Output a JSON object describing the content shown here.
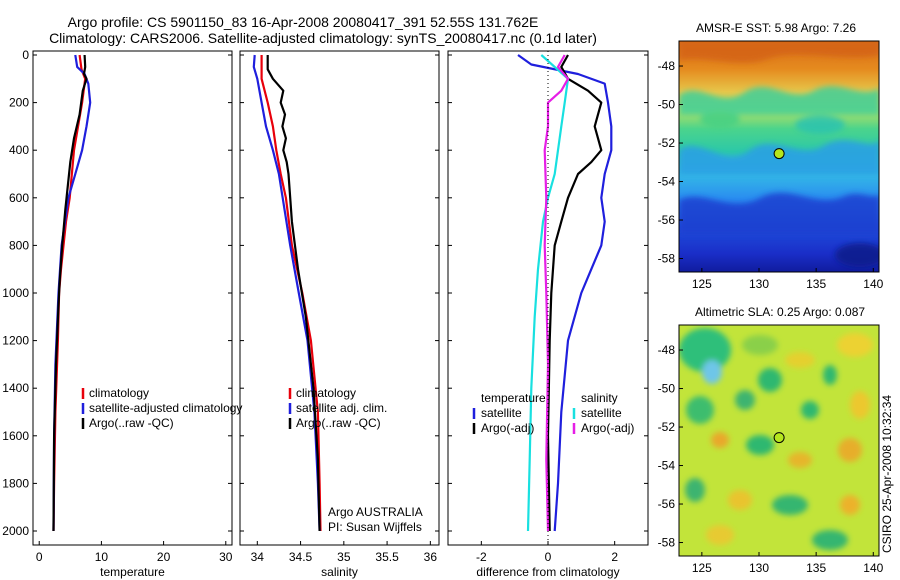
{
  "title_line1": "Argo profile: CS 5901150_83 16-Apr-2008 20080417_391 52.55S 131.762E",
  "title_line2": "Climatology: CARS2006. Satellite-adjusted climatology: synTS_20080417.nc (0.1d later)",
  "side_label": "CSIRO 25-Apr-2008 10:32:34",
  "colors": {
    "red": "#e8000b",
    "blue": "#1f1fdd",
    "black": "#000000",
    "cyan": "#18e0e0",
    "magenta": "#e61ee6"
  },
  "chart_data": [
    {
      "type": "line",
      "id": "temperature",
      "xlabel": "temperature",
      "ylabel": "",
      "xlim": [
        -1,
        31
      ],
      "ylim": [
        2050,
        0
      ],
      "xticks": [
        0,
        10,
        20,
        30
      ],
      "yticks": [
        0,
        200,
        400,
        600,
        800,
        1000,
        1200,
        1400,
        1600,
        1800,
        2000
      ],
      "legend": {
        "placement": "lower-right",
        "entries": [
          "climatology",
          "satellite-adjusted climatology",
          "Argo(..raw -QC)"
        ]
      },
      "series": [
        {
          "name": "climatology",
          "color": "red",
          "x": [
            6.5,
            6.8,
            7.4,
            6.9,
            5.6,
            4.9,
            4.3,
            3.9,
            3.5,
            3.2,
            3.0,
            2.6,
            2.4,
            2.3
          ],
          "y": [
            0,
            60,
            100,
            200,
            400,
            600,
            700,
            800,
            900,
            1000,
            1200,
            1500,
            1800,
            2000
          ]
        },
        {
          "name": "satellite-adjusted climatology",
          "color": "blue",
          "x": [
            5.8,
            6.1,
            7.3,
            7.9,
            8.2,
            7.6,
            6.9,
            5.8,
            4.7,
            3.6,
            3.1,
            2.6,
            2.4,
            2.3
          ],
          "y": [
            0,
            50,
            80,
            120,
            200,
            300,
            400,
            500,
            600,
            800,
            1000,
            1300,
            1600,
            2000
          ]
        },
        {
          "name": "Argo(..raw -QC)",
          "color": "black",
          "x": [
            7.3,
            7.4,
            7.2,
            7.6,
            7.0,
            6.5,
            5.6,
            5.0,
            4.6,
            4.2,
            3.7,
            3.3,
            3.1,
            2.7,
            2.4,
            2.3
          ],
          "y": [
            0,
            50,
            80,
            100,
            150,
            250,
            350,
            450,
            550,
            650,
            800,
            950,
            1050,
            1300,
            1600,
            2000
          ]
        }
      ]
    },
    {
      "type": "line",
      "id": "salinity",
      "xlabel": "salinity",
      "ylabel": "",
      "xlim": [
        33.8,
        36.1
      ],
      "ylim": [
        2050,
        0
      ],
      "xticks": [
        34,
        34.5,
        35,
        35.5,
        36
      ],
      "xtick_labels": [
        "34",
        "34.5",
        "35",
        "35.5",
        "36"
      ],
      "legend": {
        "placement": "lower-right",
        "entries": [
          "climatology",
          "satellite adj. clim.",
          "Argo(..raw -QC)"
        ]
      },
      "annotations": [
        "Argo AUSTRALIA",
        "PI: Susan Wijffels"
      ],
      "series": [
        {
          "name": "climatology",
          "color": "red",
          "x": [
            34.05,
            34.05,
            34.12,
            34.18,
            34.22,
            34.27,
            34.33,
            34.4,
            34.52,
            34.62,
            34.7,
            34.72,
            34.73
          ],
          "y": [
            0,
            100,
            200,
            300,
            400,
            500,
            600,
            800,
            1000,
            1200,
            1500,
            1800,
            2000
          ]
        },
        {
          "name": "satellite adj. clim.",
          "color": "blue",
          "x": [
            33.97,
            33.96,
            34.0,
            34.05,
            34.1,
            34.18,
            34.25,
            34.38,
            34.48,
            34.58,
            34.66,
            34.7,
            34.72
          ],
          "y": [
            0,
            50,
            100,
            200,
            300,
            400,
            500,
            800,
            1000,
            1200,
            1500,
            1800,
            2000
          ]
        },
        {
          "name": "Argo(..raw -QC)",
          "color": "black",
          "x": [
            34.12,
            34.12,
            34.18,
            34.3,
            34.27,
            34.32,
            34.29,
            34.33,
            34.3,
            34.34,
            34.36,
            34.4,
            34.47,
            34.56,
            34.65,
            34.7,
            34.72
          ],
          "y": [
            0,
            60,
            100,
            150,
            200,
            250,
            300,
            350,
            400,
            450,
            500,
            700,
            900,
            1100,
            1400,
            1700,
            2000
          ]
        }
      ]
    },
    {
      "type": "line",
      "id": "difference",
      "xlabel": "difference from climatology",
      "ylabel": "",
      "xlim": [
        -3,
        3
      ],
      "ylim": [
        2050,
        0
      ],
      "xticks": [
        -2,
        0,
        2
      ],
      "legend": {
        "placement": "lower-right",
        "groups": [
          {
            "heading": "temperature",
            "entries": [
              "satellite",
              "Argo(-adj)"
            ]
          },
          {
            "heading": "salinity",
            "entries": [
              "satellite",
              "Argo(-adj)"
            ]
          }
        ]
      },
      "series": [
        {
          "name": "temperature satellite",
          "color": "blue",
          "x": [
            -0.9,
            -0.5,
            0.9,
            1.7,
            1.8,
            1.9,
            1.9,
            1.7,
            1.6,
            1.7,
            1.6,
            1.3,
            1.0,
            0.6,
            0.4,
            0.3,
            0.2
          ],
          "y": [
            0,
            40,
            80,
            120,
            200,
            300,
            400,
            500,
            600,
            700,
            800,
            900,
            1000,
            1200,
            1500,
            1800,
            2000
          ]
        },
        {
          "name": "temperature Argo(-adj)",
          "color": "black",
          "x": [
            0.6,
            0.4,
            0.6,
            1.2,
            1.6,
            1.4,
            1.6,
            1.3,
            0.9,
            0.6,
            0.4,
            0.2,
            0.1,
            0.05,
            0.0,
            0.05
          ],
          "y": [
            0,
            50,
            100,
            150,
            200,
            300,
            400,
            450,
            500,
            600,
            700,
            800,
            1000,
            1200,
            1600,
            2000
          ]
        },
        {
          "name": "salinity satellite",
          "color": "cyan",
          "x": [
            -0.2,
            0.6,
            0.5,
            0.4,
            0.3,
            0.2,
            0.0,
            -0.15,
            -0.3,
            -0.4,
            -0.5,
            -0.55,
            -0.6
          ],
          "y": [
            0,
            100,
            200,
            300,
            400,
            500,
            600,
            700,
            900,
            1100,
            1400,
            1700,
            2000
          ]
        },
        {
          "name": "salinity Argo(-adj)",
          "color": "magenta",
          "x": [
            0.5,
            0.3,
            0.6,
            0.4,
            0.0,
            0.0,
            -0.1,
            -0.05,
            -0.1,
            -0.05,
            0.0,
            -0.05,
            0.0
          ],
          "y": [
            0,
            50,
            100,
            150,
            200,
            300,
            400,
            600,
            800,
            1000,
            1300,
            1700,
            2000
          ]
        }
      ]
    },
    {
      "type": "heatmap",
      "id": "sst_map",
      "title": "AMSR-E SST: 5.98 Argo: 7.26",
      "xlim": [
        123,
        140.5
      ],
      "ylim": [
        -58.7,
        -46.7
      ],
      "xticks": [
        125,
        130,
        135,
        140
      ],
      "yticks": [
        -48,
        -50,
        -52,
        -54,
        -56,
        -58
      ],
      "marker": {
        "x": 131.76,
        "y": -52.55,
        "color": "#b5e61d"
      }
    },
    {
      "type": "heatmap",
      "id": "sla_map",
      "title": "Altimetric SLA: 0.25 Argo: 0.087",
      "xlim": [
        123,
        140.5
      ],
      "ylim": [
        -58.7,
        -46.7
      ],
      "xticks": [
        125,
        130,
        135,
        140
      ],
      "yticks": [
        -48,
        -50,
        -52,
        -54,
        -56,
        -58
      ],
      "marker": {
        "x": 131.76,
        "y": -52.55,
        "color": "#b5e61d"
      }
    }
  ]
}
